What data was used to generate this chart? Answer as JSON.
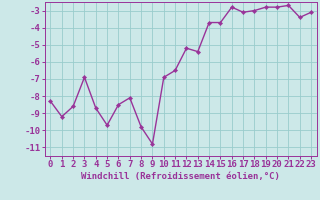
{
  "x": [
    0,
    1,
    2,
    3,
    4,
    5,
    6,
    7,
    8,
    9,
    10,
    11,
    12,
    13,
    14,
    15,
    16,
    17,
    18,
    19,
    20,
    21,
    22,
    23
  ],
  "y": [
    -8.3,
    -9.2,
    -8.6,
    -6.9,
    -8.7,
    -9.7,
    -8.5,
    -8.1,
    -9.8,
    -10.8,
    -6.9,
    -6.5,
    -5.2,
    -5.4,
    -3.7,
    -3.7,
    -2.8,
    -3.1,
    -3.0,
    -2.8,
    -2.8,
    -2.7,
    -3.4,
    -3.1
  ],
  "line_color": "#993399",
  "marker": "D",
  "marker_size": 2.2,
  "linewidth": 1.0,
  "xlabel": "Windchill (Refroidissement éolien,°C)",
  "xlabel_fontsize": 6.5,
  "xlabel_color": "#993399",
  "yticks": [
    -11,
    -10,
    -9,
    -8,
    -7,
    -6,
    -5,
    -4,
    -3
  ],
  "xticks": [
    0,
    1,
    2,
    3,
    4,
    5,
    6,
    7,
    8,
    9,
    10,
    11,
    12,
    13,
    14,
    15,
    16,
    17,
    18,
    19,
    20,
    21,
    22,
    23
  ],
  "ylim": [
    -11.5,
    -2.5
  ],
  "xlim": [
    -0.5,
    23.5
  ],
  "bg_color": "#cce8e8",
  "grid_color": "#99cccc",
  "tick_fontsize": 6.5,
  "tick_color": "#993399"
}
